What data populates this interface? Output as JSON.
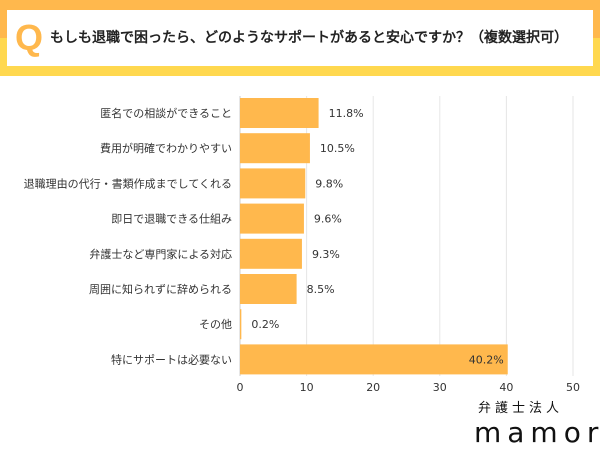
{
  "question": {
    "mark": "Q",
    "text": "もしも退職で困ったら、どのようなサポートがあると安心ですか？（複数選択可）"
  },
  "chart_data": {
    "type": "bar",
    "orientation": "horizontal",
    "categories": [
      "匿名での相談ができること",
      "費用が明確でわかりやすい",
      "退職理由の代行・書類作成までしてくれる",
      "即日で退職できる仕組み",
      "弁護士など専門家による対応",
      "周囲に知られずに辞められる",
      "その他",
      "特にサポートは必要ない"
    ],
    "values": [
      11.8,
      10.5,
      9.8,
      9.6,
      9.3,
      8.5,
      0.2,
      40.2
    ],
    "data_labels": [
      "11.8%",
      "10.5%",
      "9.8%",
      "9.6%",
      "9.3%",
      "8.5%",
      "0.2%",
      "40.2%"
    ],
    "xlim": [
      0,
      50
    ],
    "xticks": [
      0,
      10,
      20,
      30,
      40,
      50
    ],
    "grid": true,
    "bar_color": "#FFB84D"
  },
  "logo": {
    "line1": "弁護士法人",
    "line2": "mamori"
  }
}
